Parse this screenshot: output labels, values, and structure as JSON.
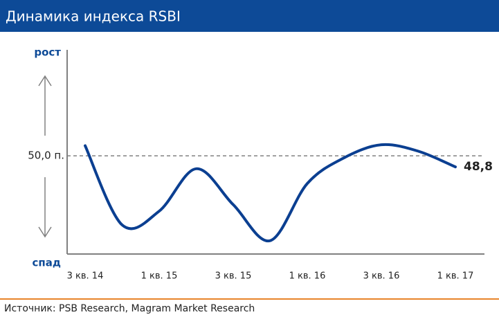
{
  "chart_data": {
    "type": "line",
    "title": "Динамика индекса RSBI",
    "y_axis_labels": {
      "top": "рост",
      "bottom": "спад"
    },
    "categories": [
      "3 кв. 14",
      null,
      "1 кв. 15",
      null,
      "3 кв. 15",
      null,
      "1 кв. 16",
      null,
      "3 кв. 16",
      null,
      "1 кв. 17"
    ],
    "series": [
      {
        "color": "#0b3f91",
        "values": [
          51.1,
          42.5,
          44.0,
          48.6,
          44.7,
          40.8,
          47.0,
          49.8,
          51.2,
          50.5,
          48.8
        ],
        "value_labels": [
          null,
          null,
          null,
          null,
          null,
          null,
          null,
          null,
          null,
          null,
          "48,8"
        ]
      }
    ],
    "ylim": [
      39.35,
      61.5
    ],
    "yticks": [
      {
        "value": 50,
        "label": "50,0 п."
      }
    ],
    "reference_line": {
      "style": "dashed",
      "color": "#808080"
    },
    "source": "Источник: PSB Research, Magram Market Research"
  }
}
